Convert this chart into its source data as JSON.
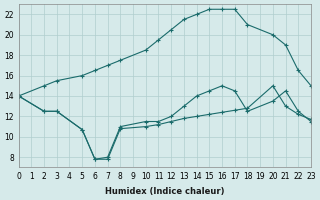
{
  "xlabel": "Humidex (Indice chaleur)",
  "ylabel": "",
  "bg_color": "#d6eaea",
  "grid_color": "#b0cece",
  "line_color": "#1a6b6b",
  "xlim": [
    0,
    23
  ],
  "ylim": [
    7,
    23
  ],
  "xticks": [
    0,
    1,
    2,
    3,
    4,
    5,
    6,
    7,
    8,
    9,
    10,
    11,
    12,
    13,
    14,
    15,
    16,
    17,
    18,
    19,
    20,
    21,
    22,
    23
  ],
  "yticks": [
    8,
    10,
    12,
    14,
    16,
    18,
    20,
    22
  ],
  "line1_x": [
    0,
    2,
    3,
    5,
    6,
    7,
    8,
    10,
    11,
    12,
    13,
    14,
    15,
    16,
    17,
    18,
    20,
    21,
    22,
    23
  ],
  "line1_y": [
    14,
    15,
    15.5,
    16,
    16.5,
    17,
    17.5,
    18.5,
    19.5,
    20.5,
    21.5,
    22.0,
    22.5,
    22.5,
    22.5,
    21.0,
    20.0,
    19.0,
    16.5,
    15.0
  ],
  "line2_x": [
    0,
    2,
    3,
    5,
    6,
    7,
    8,
    10,
    11,
    12,
    13,
    14,
    15,
    16,
    17,
    18,
    20,
    21,
    22,
    23
  ],
  "line2_y": [
    14.0,
    12.5,
    12.5,
    10.7,
    7.8,
    8.0,
    11.0,
    11.5,
    11.5,
    12.0,
    13.0,
    14.0,
    14.5,
    15.0,
    14.5,
    12.5,
    13.5,
    14.5,
    12.5,
    11.5
  ],
  "line3_x": [
    0,
    2,
    3,
    5,
    6,
    7,
    8,
    10,
    11,
    12,
    13,
    14,
    15,
    16,
    17,
    18,
    20,
    21,
    22,
    23
  ],
  "line3_y": [
    14.0,
    12.5,
    12.5,
    10.7,
    7.8,
    7.8,
    10.8,
    11.0,
    11.2,
    11.5,
    11.8,
    12.0,
    12.2,
    12.4,
    12.6,
    12.8,
    15.0,
    13.0,
    12.2,
    11.7
  ]
}
